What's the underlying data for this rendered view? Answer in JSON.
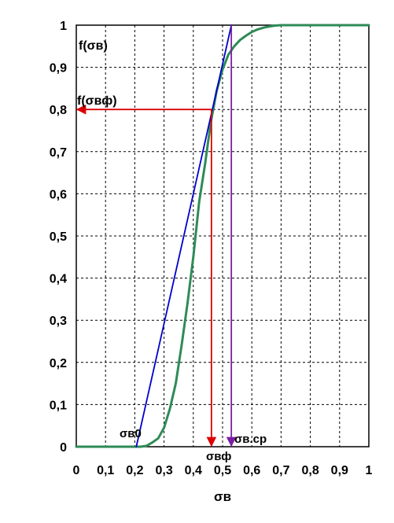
{
  "chart_data": {
    "type": "line",
    "title": "",
    "xlabel": "σв",
    "ylabel": "",
    "xlim": [
      0,
      1
    ],
    "ylim": [
      0,
      1
    ],
    "grid": true,
    "x_ticks": [
      0,
      0.1,
      0.2,
      0.3,
      0.4,
      0.5,
      0.6,
      0.7,
      0.8,
      0.9,
      1
    ],
    "y_ticks": [
      0,
      0.1,
      0.2,
      0.3,
      0.4,
      0.5,
      0.6,
      0.7,
      0.8,
      0.9,
      1
    ],
    "x_tick_labels": [
      "0",
      "0,1",
      "0,2",
      "0,3",
      "0,4",
      "0,5",
      "0,6",
      "0,7",
      "0,8",
      "0,9",
      "1"
    ],
    "y_tick_labels": [
      "0",
      "0,1",
      "0,2",
      "0,3",
      "0,4",
      "0,5",
      "0,6",
      "0,7",
      "0,8",
      "0,9",
      "1"
    ],
    "series": [
      {
        "role": "cdf-curve",
        "color": "#2e8b57",
        "x": [
          0,
          0.22,
          0.24,
          0.26,
          0.28,
          0.3,
          0.32,
          0.34,
          0.36,
          0.38,
          0.4,
          0.42,
          0.44,
          0.46,
          0.48,
          0.5,
          0.52,
          0.54,
          0.56,
          0.58,
          0.6,
          0.62,
          0.64,
          0.66,
          0.68,
          0.7,
          0.72,
          0.75,
          0.8,
          0.9,
          1.0
        ],
        "y": [
          0,
          0,
          0.002,
          0.01,
          0.02,
          0.045,
          0.09,
          0.15,
          0.24,
          0.34,
          0.45,
          0.58,
          0.67,
          0.77,
          0.845,
          0.895,
          0.93,
          0.95,
          0.965,
          0.975,
          0.984,
          0.99,
          0.994,
          0.997,
          0.999,
          1.0,
          1.0,
          1.0,
          1.0,
          1.0,
          1.0
        ]
      },
      {
        "role": "tangent-line",
        "color": "#0000cc",
        "x": [
          0.205,
          0.53
        ],
        "y": [
          0,
          1
        ]
      }
    ],
    "markers": {
      "sigma_vf": {
        "x": 0.462,
        "y": 0.8,
        "color": "#dd0000"
      },
      "sigma_v_sr": {
        "x": 0.53,
        "color": "#7b1fa2"
      }
    },
    "annotations": {
      "f_sigma_v": "f(σв)",
      "f_sigma_vf": "f(σвф)",
      "sigma_v0": "σв0",
      "sigma_vf": "σвф",
      "sigma_v_sr": "σв.ср"
    }
  }
}
